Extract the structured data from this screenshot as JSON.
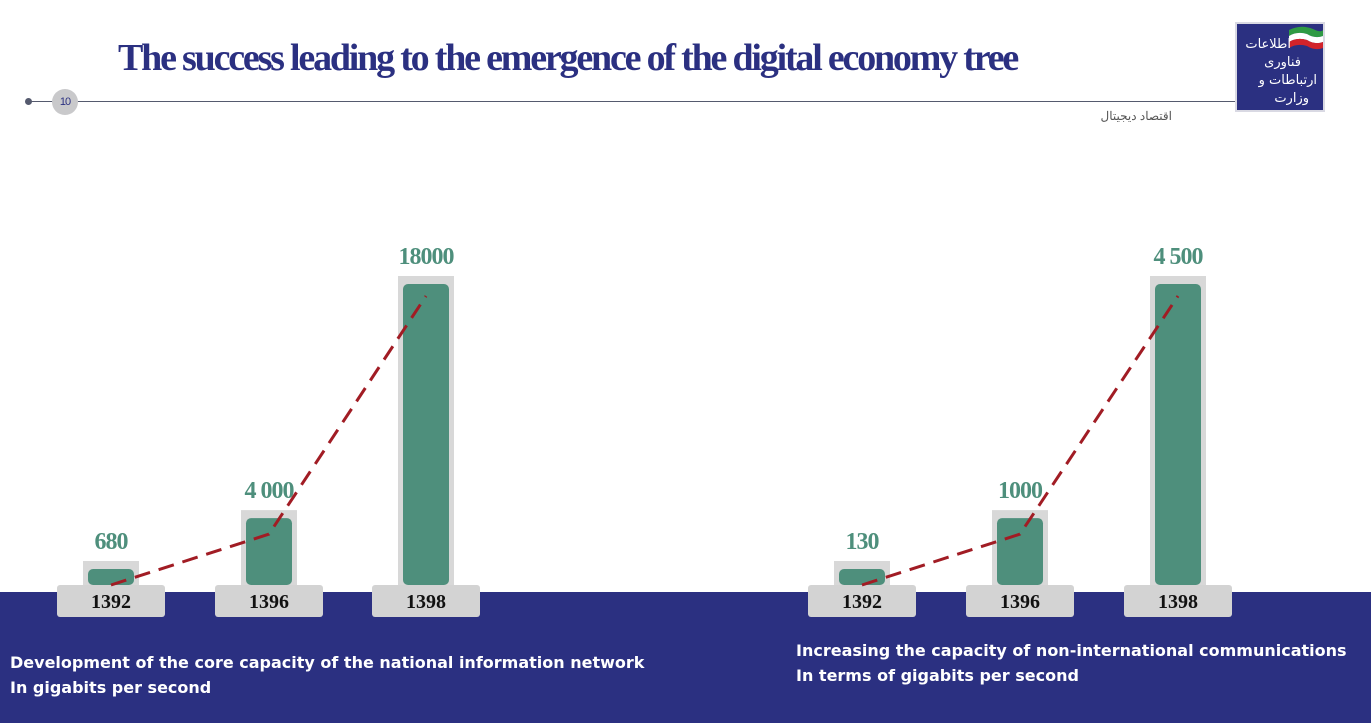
{
  "title": "The success leading to the emergence of the digital economy tree",
  "page_number": "10",
  "subtitle": "اقتصاد دیجیتال",
  "logo": {
    "name": "ministry-ict-logo",
    "text_lines": [
      "اطلاعات",
      "فناوری",
      "ارتباطات و",
      "وزارت"
    ]
  },
  "colors": {
    "bar": "#4e8f7c",
    "bar_frame": "#d8d8d8",
    "trend": "#a11c24",
    "value_label": "#4e8f7c",
    "band": "#2b3081"
  },
  "chart_data": [
    {
      "type": "bar",
      "categories": [
        "1392",
        "1396",
        "1398"
      ],
      "values": [
        680,
        4000,
        18000
      ],
      "value_labels": [
        "680",
        "4 000",
        "18000"
      ],
      "trend_line": true,
      "caption": [
        "Development of the core capacity of the national information network",
        "In gigabits per second"
      ]
    },
    {
      "type": "bar",
      "categories": [
        "1392",
        "1396",
        "1398"
      ],
      "values": [
        130,
        1000,
        4500
      ],
      "value_labels": [
        "130",
        "1000",
        "4 500"
      ],
      "trend_line": true,
      "caption": [
        "Increasing the capacity of non-international communications",
        "In terms of gigabits per second"
      ]
    }
  ]
}
